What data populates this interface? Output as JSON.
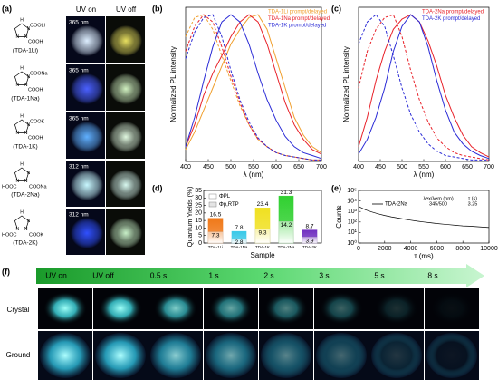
{
  "panel_labels": [
    "(a)",
    "(b)",
    "(c)",
    "(d)",
    "(e)",
    "(f)"
  ],
  "panel_a": {
    "headers": [
      "UV on",
      "UV off"
    ],
    "ring_atoms": [
      "H",
      "N",
      "N",
      "N"
    ],
    "rows": [
      {
        "name": "(TDA-1Li)",
        "wavelength": "365 nm",
        "groups": [
          "COOLi",
          "COOH"
        ]
      },
      {
        "name": "(TDA-1Na)",
        "wavelength": "365 nm",
        "groups": [
          "COONa",
          "COOH"
        ]
      },
      {
        "name": "(TDA-1K)",
        "wavelength": "365 nm",
        "groups": [
          "COOK",
          "COOH"
        ]
      },
      {
        "name": "(TDA-2Na)",
        "wavelength": "312 nm",
        "groups": [
          "HOOC",
          "COONa"
        ]
      },
      {
        "name": "(TDA-2K)",
        "wavelength": "312 nm",
        "groups": [
          "HOOC",
          "COOK"
        ]
      }
    ]
  },
  "chart_data": [
    {
      "type": "line",
      "xlabel": "λ (nm)",
      "ylabel": "Normalized PL intensity",
      "x": [
        400,
        420,
        440,
        460,
        480,
        500,
        520,
        540,
        560,
        580,
        600,
        620,
        640,
        660,
        680,
        700
      ],
      "xlim": [
        400,
        700
      ],
      "xticks": [
        400,
        450,
        500,
        550,
        600,
        650,
        700
      ],
      "ylim": [
        0,
        1.05
      ],
      "series": [
        {
          "name": "TDA-1Li prompt/delayed",
          "color": "#f0a030",
          "values": [
            0.08,
            0.2,
            0.35,
            0.5,
            0.65,
            0.8,
            0.9,
            0.98,
            1.0,
            0.9,
            0.7,
            0.5,
            0.3,
            0.18,
            0.1,
            0.06
          ],
          "delayed": [
            0.85,
            0.98,
            1.0,
            0.9,
            0.72,
            0.55,
            0.38,
            0.25,
            0.15,
            0.1,
            0.06,
            0.04,
            0.03,
            0.02,
            0.01,
            0.01
          ]
        },
        {
          "name": "TDA-1Na prompt/delayed",
          "color": "#e8222a",
          "values": [
            0.1,
            0.25,
            0.45,
            0.6,
            0.72,
            0.85,
            0.95,
            1.0,
            0.95,
            0.8,
            0.6,
            0.4,
            0.25,
            0.15,
            0.08,
            0.05
          ],
          "delayed": [
            0.75,
            0.92,
            1.0,
            0.95,
            0.78,
            0.58,
            0.4,
            0.25,
            0.15,
            0.1,
            0.06,
            0.04,
            0.03,
            0.02,
            0.01,
            0.01
          ]
        },
        {
          "name": "TDA-1K prompt/delayed",
          "color": "#2b2bd6",
          "values": [
            0.1,
            0.3,
            0.55,
            0.78,
            0.95,
            1.0,
            0.95,
            0.8,
            0.6,
            0.42,
            0.28,
            0.17,
            0.1,
            0.06,
            0.04,
            0.02
          ],
          "delayed": [
            0.7,
            0.88,
            0.98,
            1.0,
            0.85,
            0.62,
            0.42,
            0.27,
            0.16,
            0.1,
            0.06,
            0.04,
            0.03,
            0.02,
            0.01,
            0.01
          ]
        }
      ]
    },
    {
      "type": "line",
      "xlabel": "λ (nm)",
      "ylabel": "Normalized PL intensity",
      "x": [
        400,
        420,
        440,
        460,
        480,
        500,
        520,
        540,
        560,
        580,
        600,
        620,
        640,
        660,
        680,
        700
      ],
      "xlim": [
        400,
        700
      ],
      "xticks": [
        400,
        450,
        500,
        550,
        600,
        650,
        700
      ],
      "ylim": [
        0,
        1.05
      ],
      "series": [
        {
          "name": "TDA-2Na prompt/delayed",
          "color": "#e8222a",
          "values": [
            0.1,
            0.3,
            0.55,
            0.75,
            0.9,
            0.97,
            1.0,
            0.95,
            0.82,
            0.65,
            0.45,
            0.3,
            0.18,
            0.1,
            0.06,
            0.03
          ],
          "delayed": [
            0.5,
            0.75,
            0.9,
            0.98,
            1.0,
            0.85,
            0.62,
            0.42,
            0.27,
            0.16,
            0.1,
            0.06,
            0.04,
            0.03,
            0.02,
            0.01
          ]
        },
        {
          "name": "TDA-2K prompt/delayed",
          "color": "#2b2bd6",
          "values": [
            0.05,
            0.15,
            0.3,
            0.5,
            0.75,
            0.92,
            1.0,
            0.95,
            0.78,
            0.55,
            0.35,
            0.2,
            0.12,
            0.07,
            0.04,
            0.02
          ],
          "delayed": [
            0.8,
            0.95,
            1.0,
            0.92,
            0.72,
            0.5,
            0.32,
            0.2,
            0.12,
            0.07,
            0.04,
            0.03,
            0.02,
            0.01,
            0.01,
            0.01
          ]
        }
      ]
    },
    {
      "type": "bar",
      "xlabel": "Sample",
      "ylabel": "Quantum Yields (%)",
      "categories": [
        "TDA-1Li",
        "TDA-1Na",
        "TDA-1K",
        "TDA-2Na",
        "TDA-2K"
      ],
      "colors": [
        "#f07818",
        "#38c8e8",
        "#f0e020",
        "#30d030",
        "#7030c0"
      ],
      "series": [
        {
          "name": "ΦPL",
          "values": [
            16.5,
            7.8,
            23.4,
            31.3,
            8.7
          ]
        },
        {
          "name": "Φp,RTP",
          "values": [
            7.3,
            2.8,
            9.3,
            14.2,
            3.9
          ]
        }
      ],
      "ylim": [
        0,
        35
      ],
      "yticks": [
        0,
        5,
        10,
        15,
        20,
        25,
        30,
        35
      ]
    },
    {
      "type": "line",
      "log_y": true,
      "xlabel": "τ (ms)",
      "ylabel": "Counts",
      "x": [
        0,
        500,
        1000,
        1500,
        2000,
        2500,
        3000,
        3500,
        4000,
        4500,
        5000,
        5500,
        6000,
        6500,
        7000,
        7500,
        8000,
        8500,
        9000,
        9500,
        10000
      ],
      "xlim": [
        0,
        10000
      ],
      "xticks": [
        0,
        2000,
        4000,
        6000,
        8000,
        10000
      ],
      "ylim": [
        1,
        100000
      ],
      "yticks": [
        {
          "value": 1,
          "label": "10⁰"
        },
        {
          "value": 10,
          "label": "10¹"
        },
        {
          "value": 100,
          "label": "10²"
        },
        {
          "value": 1000,
          "label": "10³"
        },
        {
          "value": 10000,
          "label": "10⁴"
        },
        {
          "value": 100000,
          "label": "10⁵"
        }
      ],
      "series": [
        {
          "name": "TDA-2Na",
          "color": "#000000",
          "values": [
            3000,
            1500,
            900,
            600,
            420,
            310,
            240,
            190,
            150,
            120,
            100,
            85,
            72,
            62,
            55,
            48,
            43,
            40,
            36,
            33,
            30
          ]
        }
      ],
      "table": {
        "headers": [
          "λex/λem (nm)",
          "τ (s)"
        ],
        "values": [
          "345/500",
          "3.25"
        ]
      }
    }
  ],
  "panel_f": {
    "steps": [
      "UV on",
      "UV off",
      "0.5 s",
      "1 s",
      "2 s",
      "3 s",
      "5 s",
      "8 s"
    ],
    "rows": [
      "Crystal",
      "Ground"
    ]
  }
}
